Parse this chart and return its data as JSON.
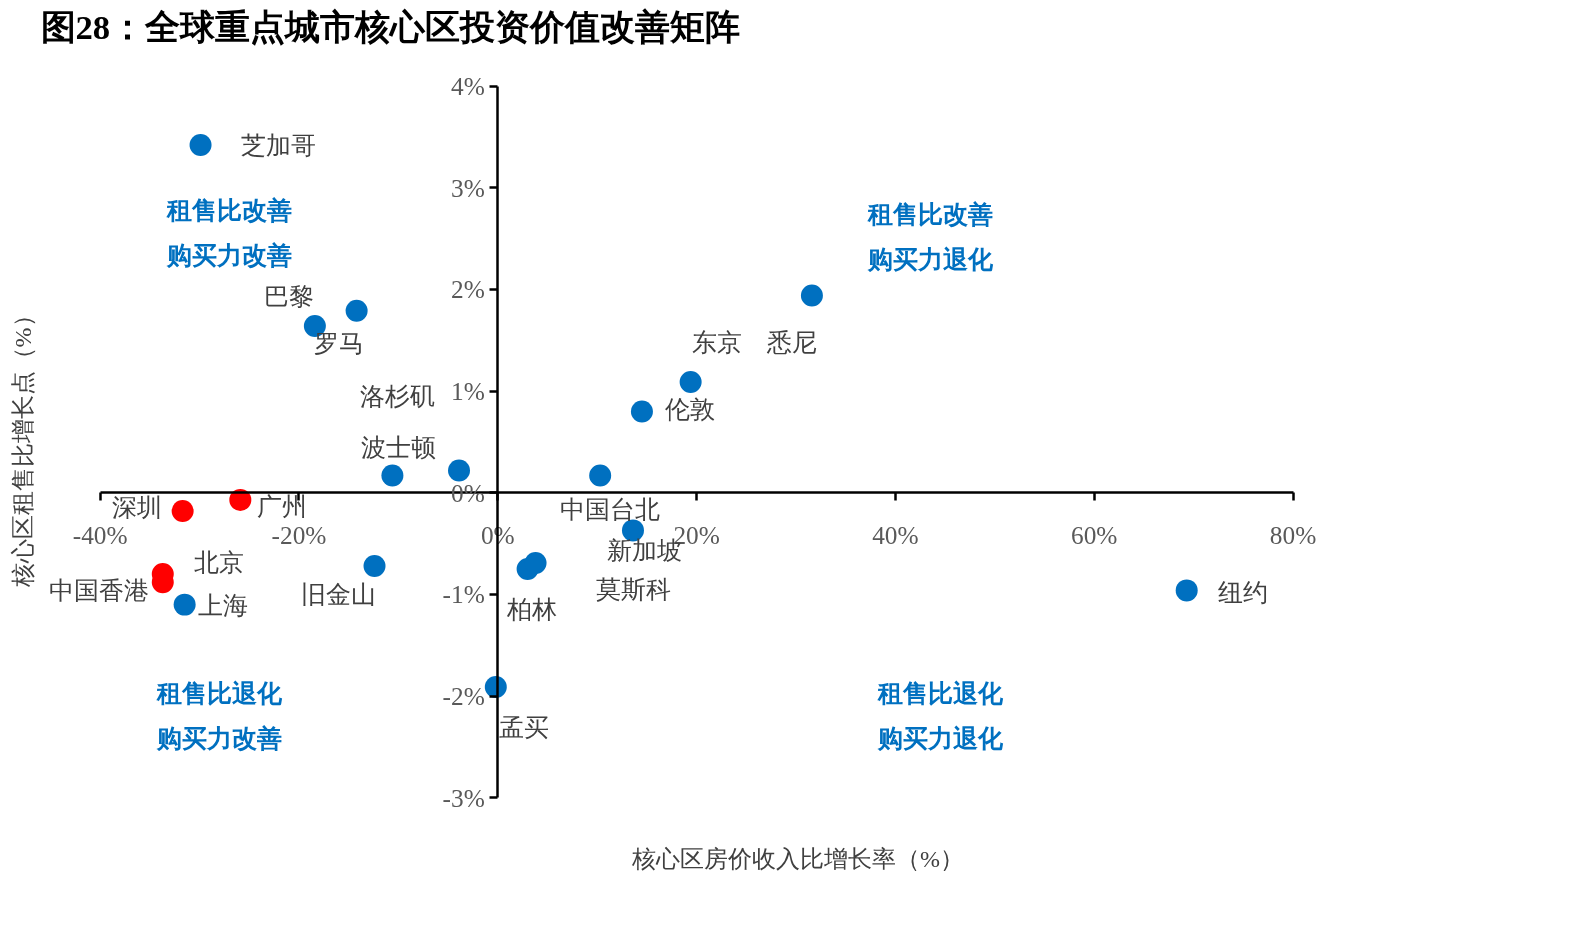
{
  "chart_data": {
    "type": "scatter",
    "title": "图28：全球重点城市核心区投资价值改善矩阵",
    "xlabel": "核心区房价收入比增长率（%）",
    "ylabel": "核心区租售比增长点（%）",
    "xlim": [
      -40,
      80
    ],
    "ylim": [
      -3,
      4
    ],
    "xticks": [
      {
        "value": -40,
        "label": "-40%"
      },
      {
        "value": -20,
        "label": "-20%"
      },
      {
        "value": 0,
        "label": "0%"
      },
      {
        "value": 20,
        "label": "20%"
      },
      {
        "value": 40,
        "label": "40%"
      },
      {
        "value": 60,
        "label": "60%"
      },
      {
        "value": 80,
        "label": "80%"
      }
    ],
    "yticks": [
      {
        "value": -3,
        "label": "-3%"
      },
      {
        "value": -2,
        "label": "-2%"
      },
      {
        "value": -1,
        "label": "-1%"
      },
      {
        "value": 0,
        "label": "0%"
      },
      {
        "value": 1,
        "label": "1%"
      },
      {
        "value": 2,
        "label": "2%"
      },
      {
        "value": 3,
        "label": "3%"
      },
      {
        "value": 4,
        "label": "4%"
      }
    ],
    "marker": "circle",
    "series": [
      {
        "name": "芝加哥",
        "color": "#0070c0",
        "x": [
          -29.9
        ],
        "values": [
          3.42
        ]
      },
      {
        "name": "巴黎",
        "color": "#0070c0",
        "x": [
          -18.4
        ],
        "values": [
          1.64
        ]
      },
      {
        "name": "罗马",
        "color": "#0070c0",
        "x": [
          -14.2
        ],
        "values": [
          1.79
        ]
      },
      {
        "name": "洛杉矶",
        "color": "#0070c0",
        "x": [
          -3.9
        ],
        "values": [
          0.22
        ]
      },
      {
        "name": "波士顿",
        "color": "#0070c0",
        "x": [
          -10.6
        ],
        "values": [
          0.17
        ]
      },
      {
        "name": "上海",
        "color": "#0070c0",
        "x": [
          -31.5
        ],
        "values": [
          -1.1
        ]
      },
      {
        "name": "旧金山",
        "color": "#0070c0",
        "x": [
          -12.4
        ],
        "values": [
          -0.72
        ]
      },
      {
        "name": "柏林",
        "color": "#0070c0",
        "x": [
          3.0
        ],
        "values": [
          -0.75
        ]
      },
      {
        "name": "莫斯科",
        "color": "#0070c0",
        "x": [
          3.8
        ],
        "values": [
          -0.69
        ]
      },
      {
        "name": "新加坡",
        "color": "#0070c0",
        "x": [
          13.6
        ],
        "values": [
          -0.37
        ]
      },
      {
        "name": "中国台北",
        "color": "#0070c0",
        "x": [
          10.3
        ],
        "values": [
          0.17
        ]
      },
      {
        "name": "伦敦",
        "color": "#0070c0",
        "x": [
          14.5
        ],
        "values": [
          0.8
        ]
      },
      {
        "name": "东京",
        "color": "#0070c0",
        "x": [
          19.4
        ],
        "values": [
          1.09
        ]
      },
      {
        "name": "悉尼",
        "color": "#0070c0",
        "x": [
          31.6
        ],
        "values": [
          1.94
        ]
      },
      {
        "name": "纽约",
        "color": "#0070c0",
        "x": [
          69.3
        ],
        "values": [
          -0.96
        ]
      },
      {
        "name": "孟买",
        "color": "#0070c0",
        "x": [
          -0.2
        ],
        "values": [
          -1.91
        ]
      },
      {
        "name": "深圳",
        "color": "#ff0000",
        "x": [
          -31.7
        ],
        "values": [
          -0.18
        ]
      },
      {
        "name": "广州",
        "color": "#ff0000",
        "x": [
          -25.9
        ],
        "values": [
          -0.07
        ]
      },
      {
        "name": "北京",
        "color": "#ff0000",
        "x": [
          -33.7
        ],
        "values": [
          -0.8
        ]
      },
      {
        "name": "中国香港",
        "color": "#ff0000",
        "x": [
          -33.7
        ],
        "values": [
          -0.88
        ]
      }
    ],
    "annotations": [
      "租售比改善",
      "购买力改善",
      "租售比改善",
      "购买力退化",
      "租售比退化",
      "购买力改善",
      "租售比退化",
      "购买力退化"
    ]
  }
}
